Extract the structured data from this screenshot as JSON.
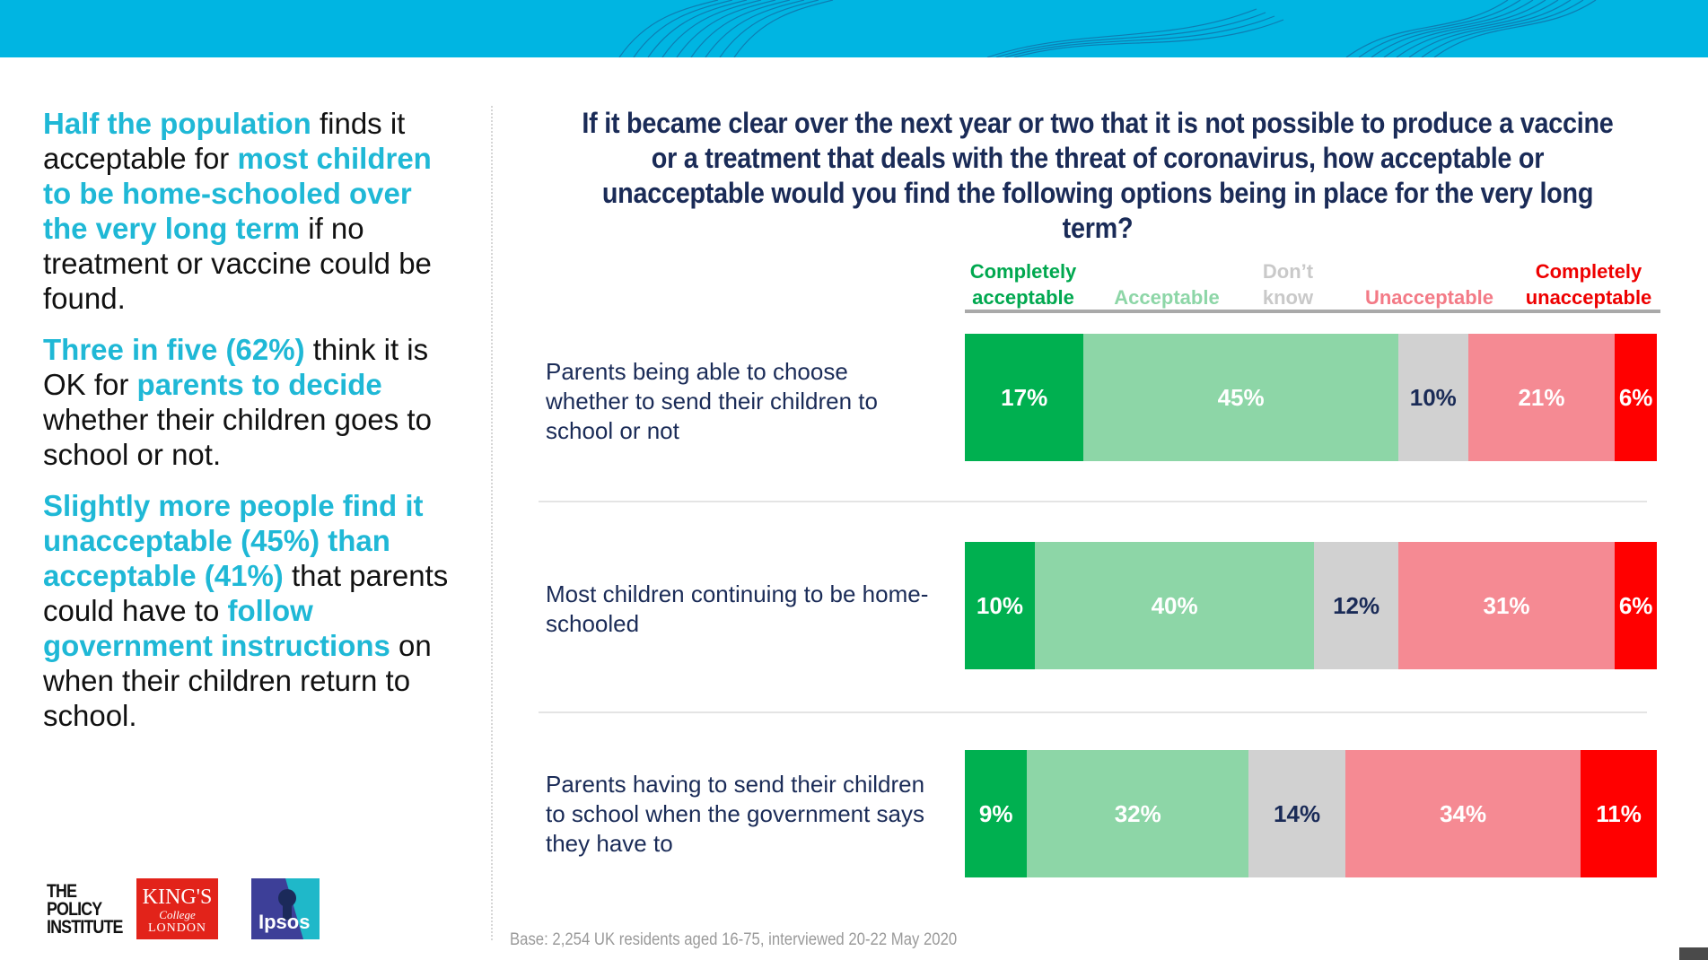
{
  "colors": {
    "band": "#00b5e2",
    "highlight": "#1fb8d6",
    "title": "#1a2b57"
  },
  "summary": {
    "p1": [
      {
        "text": "Half the population",
        "hl": true
      },
      {
        "text": " finds it acceptable for ",
        "hl": false
      },
      {
        "text": "most children to be home-schooled over the very long term",
        "hl": true
      },
      {
        "text": " if no treatment or vaccine could be found.",
        "hl": false
      }
    ],
    "p2": [
      {
        "text": "Three in five (62%)",
        "hl": true
      },
      {
        "text": " think it is OK for ",
        "hl": false
      },
      {
        "text": "parents to decide",
        "hl": true
      },
      {
        "text": " whether their children goes to school or not.",
        "hl": false
      }
    ],
    "p3": [
      {
        "text": "Slightly more people find it unacceptable (45%) than acceptable (41%)",
        "hl": true
      },
      {
        "text": " that parents could have to ",
        "hl": false
      },
      {
        "text": "follow government instructions",
        "hl": true
      },
      {
        "text": " on when their children return to school.",
        "hl": false
      }
    ]
  },
  "chart_data": {
    "type": "bar",
    "orientation": "horizontal",
    "stacked": true,
    "normalized": true,
    "title": "If it became clear over the next year or two that it is not possible to produce a vaccine or a treatment that deals with the threat of coronavirus, how acceptable or unacceptable would you find the following options being in place for the very long term?",
    "categories": [
      "Parents being able to choose whether to send their children to school or not",
      "Most children continuing to be home-schooled",
      "Parents having to send their children to school when the government says they have to"
    ],
    "series": [
      {
        "name": "Completely acceptable",
        "color": "#00b050",
        "label_color": "#ffffff",
        "values": [
          17,
          10,
          9
        ]
      },
      {
        "name": "Acceptable",
        "color": "#8dd6a7",
        "label_color": "#ffffff",
        "values": [
          45,
          40,
          32
        ]
      },
      {
        "name": "Don't know",
        "color": "#d1d1d1",
        "label_color": "#1a2b57",
        "values": [
          10,
          12,
          14
        ]
      },
      {
        "name": "Unacceptable",
        "color": "#f58a93",
        "label_color": "#ffffff",
        "values": [
          21,
          31,
          34
        ]
      },
      {
        "name": "Completely unacceptable",
        "color": "#ff0000",
        "label_color": "#ffffff",
        "values": [
          6,
          6,
          11
        ]
      }
    ],
    "legend_title_colors": [
      "#00a84f",
      "#8dd6a7",
      "#c9c9c9",
      "#f37a86",
      "#ee0000"
    ],
    "legend_lines": [
      [
        "Completely",
        "acceptable"
      ],
      [
        "Acceptable"
      ],
      [
        "Don’t",
        "know"
      ],
      [
        "Unacceptable"
      ],
      [
        "Completely",
        "unacceptable"
      ]
    ],
    "legend_position": "top"
  },
  "base_note": "Base: 2,254 UK residents aged 16-75, interviewed 20-22 May 2020",
  "logos": {
    "policy_institute": [
      "THE",
      "POLICY",
      "INSTITUTE"
    ],
    "kings": [
      "KING'S",
      "College",
      "LONDON"
    ],
    "ipsos": "Ipsos"
  }
}
